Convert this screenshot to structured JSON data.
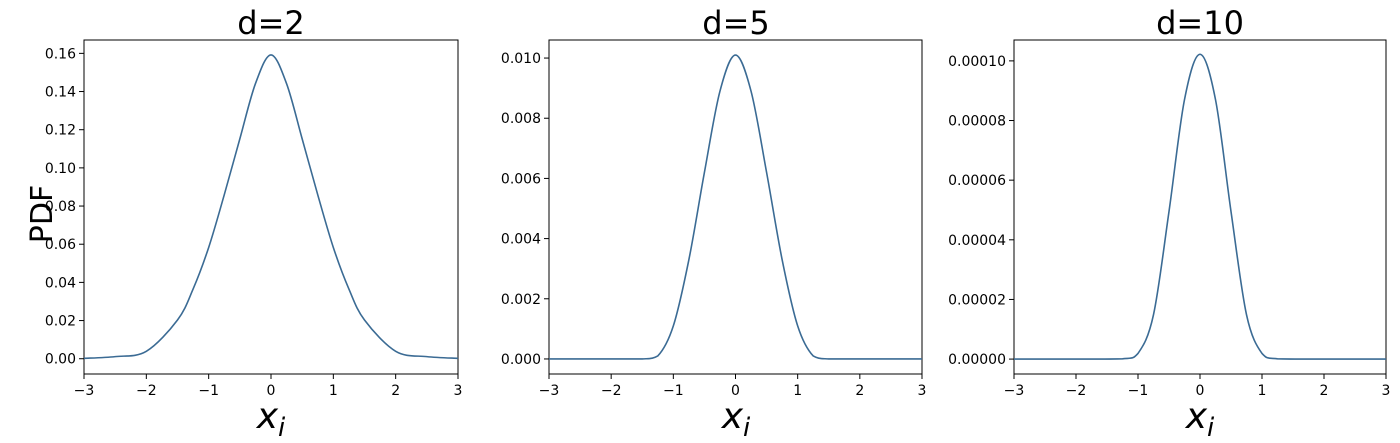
{
  "chart_data": [
    {
      "type": "line",
      "title": "d=2",
      "xlabel": "x_i",
      "ylabel": "PDF",
      "xlim": [
        -3,
        3
      ],
      "ylim": [
        -0.008,
        0.167
      ],
      "x_ticks": [
        -3,
        -2,
        -1,
        0,
        1,
        2,
        3
      ],
      "y_ticks": [
        "0.00",
        "0.02",
        "0.04",
        "0.06",
        "0.08",
        "0.10",
        "0.12",
        "0.14",
        "0.16"
      ],
      "grid": false,
      "series": [
        {
          "color": "#3b6b94",
          "x": [
            -3,
            -2.5,
            -2,
            -1.5,
            -1.25,
            -1,
            -0.75,
            -0.5,
            -0.25,
            0,
            0.25,
            0.5,
            0.75,
            1,
            1.25,
            1.5,
            2,
            2.5,
            3
          ],
          "y": [
            0.0002,
            0.0011,
            0.0039,
            0.0203,
            0.0365,
            0.0583,
            0.0859,
            0.1152,
            0.1441,
            0.1592,
            0.1441,
            0.1152,
            0.0859,
            0.0583,
            0.0365,
            0.0203,
            0.0039,
            0.0011,
            0.0002
          ]
        }
      ]
    },
    {
      "type": "line",
      "title": "d=5",
      "xlabel": "x_i",
      "ylabel": "",
      "xlim": [
        -3,
        3
      ],
      "ylim": [
        -0.0005,
        0.0106
      ],
      "x_ticks": [
        -3,
        -2,
        -1,
        0,
        1,
        2,
        3
      ],
      "y_ticks": [
        "0.000",
        "0.002",
        "0.004",
        "0.006",
        "0.008",
        "0.010"
      ],
      "grid": false,
      "series": [
        {
          "color": "#3b6b94",
          "x": [
            -3,
            -2,
            -1.5,
            -1.25,
            -1,
            -0.75,
            -0.5,
            -0.25,
            0,
            0.25,
            0.5,
            0.75,
            1,
            1.25,
            1.5,
            2,
            3
          ],
          "y": [
            0,
            0,
            0.0,
            0.0001,
            0.0011,
            0.0033,
            0.0062,
            0.0089,
            0.0101,
            0.0089,
            0.0062,
            0.0033,
            0.0011,
            0.0001,
            0.0,
            0,
            0
          ]
        }
      ]
    },
    {
      "type": "line",
      "title": "d=10",
      "xlabel": "x_i",
      "ylabel": "",
      "xlim": [
        -3,
        3
      ],
      "ylim": [
        -5e-06,
        0.000107
      ],
      "x_ticks": [
        -3,
        -2,
        -1,
        0,
        1,
        2,
        3
      ],
      "y_ticks": [
        "0.00000",
        "0.00002",
        "0.00004",
        "0.00006",
        "0.00008",
        "0.00010"
      ],
      "grid": false,
      "series": [
        {
          "color": "#3b6b94",
          "x": [
            -3,
            -2,
            -1.25,
            -1,
            -0.75,
            -0.5,
            -0.25,
            0,
            0.25,
            0.5,
            0.75,
            1,
            1.25,
            2,
            3
          ],
          "y": [
            0,
            0,
            1e-07,
            1.9e-06,
            1.49e-05,
            4.95e-05,
            8.7e-05,
            0.0001022,
            8.7e-05,
            4.95e-05,
            1.49e-05,
            1.9e-06,
            1e-07,
            0,
            0
          ]
        }
      ]
    }
  ]
}
